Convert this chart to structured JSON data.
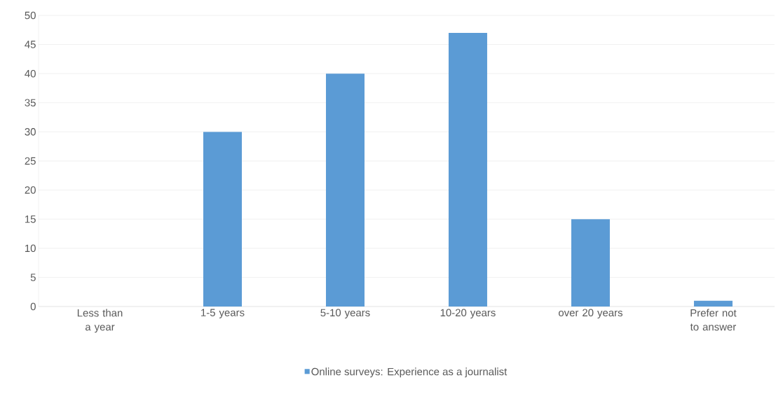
{
  "chart_data": {
    "type": "bar",
    "categories": [
      "Less than a year",
      "1-5 years",
      "5-10 years",
      "10-20 years",
      "over 20 years",
      "Prefer not to answer"
    ],
    "series": [
      {
        "name": "Online surveys: Experience as a journalist",
        "color": "#5b9bd5",
        "values": [
          0,
          30,
          40,
          47,
          15,
          1
        ]
      }
    ],
    "ylim": [
      0,
      50
    ],
    "yticks": [
      0,
      5,
      10,
      15,
      20,
      25,
      30,
      35,
      40,
      45,
      50
    ],
    "grid": "y",
    "legend": "bottom"
  }
}
